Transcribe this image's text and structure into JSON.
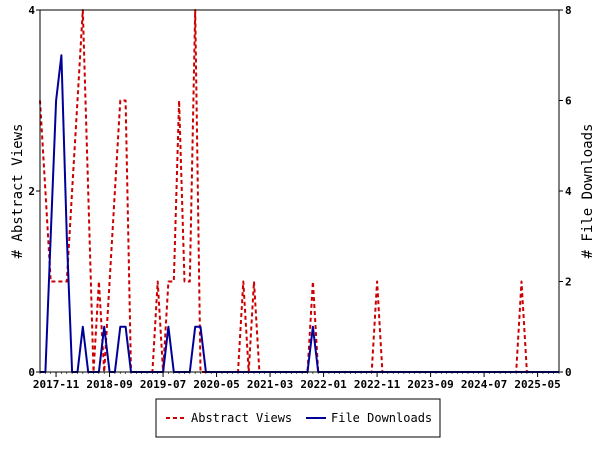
{
  "chart_data": {
    "type": "line",
    "ylabel_left": "# Abstract Views",
    "ylabel_right": "# File Downloads",
    "ylim_left": [
      0,
      4
    ],
    "ylim_right": [
      0,
      8
    ],
    "yticks_left": [
      0,
      2,
      4
    ],
    "yticks_right": [
      0,
      2,
      4,
      6,
      8
    ],
    "x_start": "2017-08",
    "x_end": "2025-09",
    "x_tick_labels": [
      "2017-11",
      "2018-09",
      "2019-07",
      "2020-05",
      "2021-03",
      "2022-01",
      "2022-11",
      "2023-09",
      "2024-07",
      "2025-05"
    ],
    "legend_position": "bottom",
    "series": [
      {
        "name": "Abstract Views",
        "color": "#cc0000",
        "style": "dashed",
        "axis": "left",
        "points": [
          [
            "2017-08",
            3
          ],
          [
            "2017-09",
            2
          ],
          [
            "2017-10",
            1
          ],
          [
            "2017-11",
            1
          ],
          [
            "2017-12",
            1
          ],
          [
            "2018-01",
            1
          ],
          [
            "2018-02",
            2
          ],
          [
            "2018-03",
            3
          ],
          [
            "2018-04",
            4
          ],
          [
            "2018-05",
            2
          ],
          [
            "2018-06",
            0
          ],
          [
            "2018-07",
            1
          ],
          [
            "2018-08",
            0
          ],
          [
            "2018-09",
            1
          ],
          [
            "2018-10",
            2
          ],
          [
            "2018-11",
            3
          ],
          [
            "2018-12",
            3
          ],
          [
            "2019-01",
            0
          ],
          [
            "2019-02",
            0
          ],
          [
            "2019-03",
            0
          ],
          [
            "2019-04",
            0
          ],
          [
            "2019-05",
            0
          ],
          [
            "2019-06",
            1
          ],
          [
            "2019-07",
            0
          ],
          [
            "2019-08",
            1
          ],
          [
            "2019-09",
            1
          ],
          [
            "2019-10",
            3
          ],
          [
            "2019-11",
            1
          ],
          [
            "2019-12",
            1
          ],
          [
            "2020-01",
            4
          ],
          [
            "2020-02",
            0
          ],
          [
            "2020-03",
            0
          ],
          [
            "2020-04",
            0
          ],
          [
            "2020-05",
            0
          ],
          [
            "2020-06",
            0
          ],
          [
            "2020-07",
            0
          ],
          [
            "2020-08",
            0
          ],
          [
            "2020-09",
            0
          ],
          [
            "2020-10",
            1
          ],
          [
            "2020-11",
            0
          ],
          [
            "2020-12",
            1
          ],
          [
            "2021-01",
            0
          ],
          [
            "2021-02",
            0
          ],
          [
            "2021-03",
            0
          ],
          [
            "2021-04",
            0
          ],
          [
            "2021-05",
            0
          ],
          [
            "2021-06",
            0
          ],
          [
            "2021-07",
            0
          ],
          [
            "2021-08",
            0
          ],
          [
            "2021-09",
            0
          ],
          [
            "2021-10",
            0
          ],
          [
            "2021-11",
            1
          ],
          [
            "2021-12",
            0
          ],
          [
            "2022-01",
            0
          ],
          [
            "2022-02",
            0
          ],
          [
            "2022-03",
            0
          ],
          [
            "2022-04",
            0
          ],
          [
            "2022-05",
            0
          ],
          [
            "2022-06",
            0
          ],
          [
            "2022-07",
            0
          ],
          [
            "2022-08",
            0
          ],
          [
            "2022-09",
            0
          ],
          [
            "2022-10",
            0
          ],
          [
            "2022-11",
            1
          ],
          [
            "2022-12",
            0
          ],
          [
            "2023-01",
            0
          ],
          [
            "2023-06",
            0
          ],
          [
            "2023-12",
            0
          ],
          [
            "2024-06",
            0
          ],
          [
            "2024-12",
            0
          ],
          [
            "2025-01",
            0
          ],
          [
            "2025-02",
            1
          ],
          [
            "2025-03",
            0
          ],
          [
            "2025-09",
            0
          ]
        ]
      },
      {
        "name": "File Downloads",
        "color": "#000099",
        "style": "solid",
        "axis": "right",
        "points": [
          [
            "2017-08",
            0
          ],
          [
            "2017-09",
            0
          ],
          [
            "2017-10",
            3
          ],
          [
            "2017-11",
            6
          ],
          [
            "2017-12",
            7
          ],
          [
            "2018-01",
            3
          ],
          [
            "2018-02",
            0
          ],
          [
            "2018-03",
            0
          ],
          [
            "2018-04",
            1
          ],
          [
            "2018-05",
            0
          ],
          [
            "2018-06",
            0
          ],
          [
            "2018-07",
            0
          ],
          [
            "2018-08",
            1
          ],
          [
            "2018-09",
            0
          ],
          [
            "2018-10",
            0
          ],
          [
            "2018-11",
            1
          ],
          [
            "2018-12",
            1
          ],
          [
            "2019-01",
            0
          ],
          [
            "2019-02",
            0
          ],
          [
            "2019-03",
            0
          ],
          [
            "2019-04",
            0
          ],
          [
            "2019-05",
            0
          ],
          [
            "2019-06",
            0
          ],
          [
            "2019-07",
            0
          ],
          [
            "2019-08",
            1
          ],
          [
            "2019-09",
            0
          ],
          [
            "2019-10",
            0
          ],
          [
            "2019-11",
            0
          ],
          [
            "2019-12",
            0
          ],
          [
            "2020-01",
            1
          ],
          [
            "2020-02",
            1
          ],
          [
            "2020-03",
            0
          ],
          [
            "2020-04",
            0
          ],
          [
            "2020-05",
            0
          ],
          [
            "2020-06",
            0
          ],
          [
            "2021-09",
            0
          ],
          [
            "2021-10",
            0
          ],
          [
            "2021-11",
            1
          ],
          [
            "2021-12",
            0
          ],
          [
            "2022-01",
            0
          ],
          [
            "2025-09",
            0
          ]
        ]
      }
    ]
  }
}
